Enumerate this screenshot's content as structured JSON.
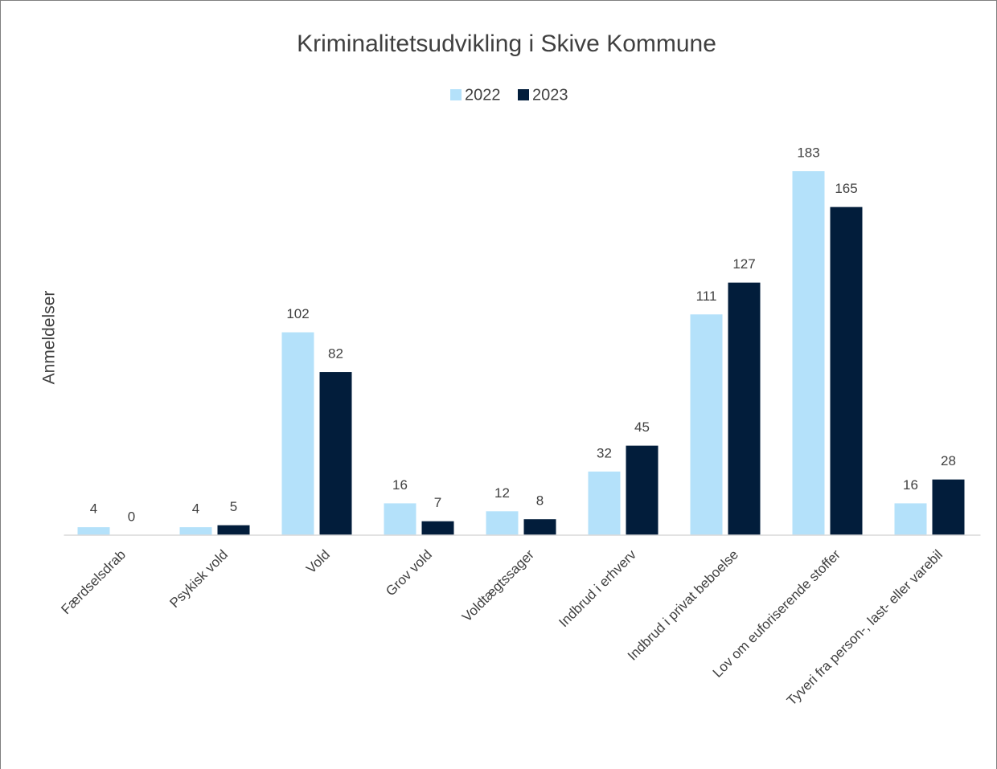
{
  "chart_data": {
    "type": "bar",
    "title": "Kriminalitetsudvikling i Skive Kommune",
    "y_label": "Anmeldelser",
    "categories": [
      "Færdselsdrab",
      "Psykisk vold",
      "Vold",
      "Grov vold",
      "Voldtægtssager",
      "Indbrud i erhverv",
      "Indbrud i privat beboelse",
      "Lov om euforiserende stoffer",
      "Tyveri fra person-, last- eller varebil"
    ],
    "series": [
      {
        "name": "2022",
        "color": "#b4e1fa",
        "values": [
          4,
          4,
          102,
          16,
          12,
          32,
          111,
          183,
          16
        ]
      },
      {
        "name": "2023",
        "color": "#021d3b",
        "values": [
          0,
          5,
          82,
          7,
          8,
          45,
          127,
          165,
          28
        ]
      }
    ],
    "ylim": [
      0,
      200
    ],
    "legend": "top"
  }
}
